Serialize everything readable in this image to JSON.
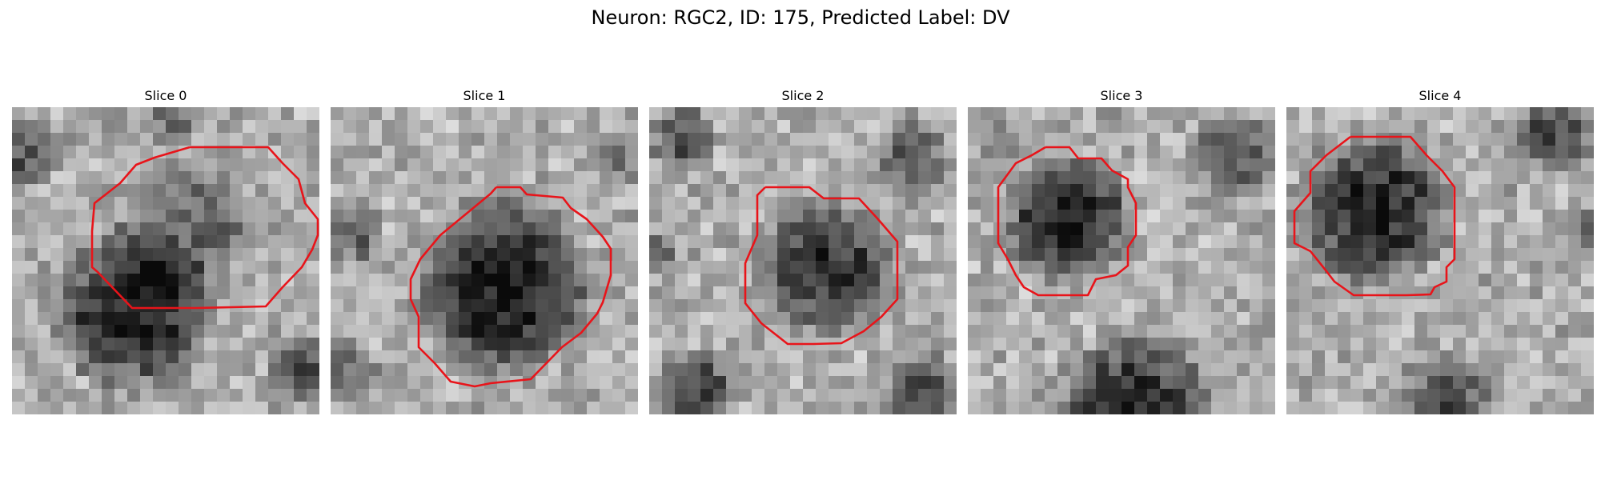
{
  "figure": {
    "title": "Neuron: RGC2, ID: 175, Predicted Label: DV"
  },
  "panels": [
    {
      "title": "Slice 0"
    },
    {
      "title": "Slice 1"
    },
    {
      "title": "Slice 2"
    },
    {
      "title": "Slice 3"
    },
    {
      "title": "Slice 4"
    }
  ],
  "colors": {
    "contour": "#e8141a",
    "background": "#ffffff"
  }
}
